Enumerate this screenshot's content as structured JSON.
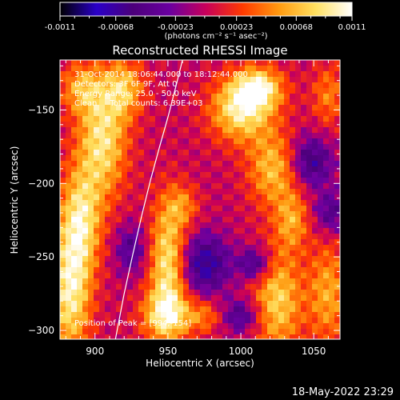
{
  "chart_data": {
    "type": "heatmap",
    "title": "Reconstructed RHESSI Image",
    "xlabel": "Heliocentric X (arcsec)",
    "ylabel": "Heliocentric Y (arcsec)",
    "xlim": [
      876,
      1068
    ],
    "ylim": [
      -306,
      -116
    ],
    "x_ticks": [
      900,
      950,
      1000,
      1050
    ],
    "y_ticks": [
      -300,
      -250,
      -200,
      -150
    ],
    "colorbar": {
      "range": [
        -0.0011,
        0.0011
      ],
      "tick_labels": [
        "-0.0011",
        "-0.00068",
        "-0.00023",
        "0.00023",
        "0.00068",
        "0.0011"
      ],
      "unit_label": "(photons cm⁻² s⁻¹ asec⁻²)",
      "colormap": [
        "#000000",
        "#2a00c8",
        "#4c007a",
        "#6a00a0",
        "#c8005a",
        "#ff3a00",
        "#ff9a10",
        "#ffe060",
        "#ffffff"
      ]
    },
    "annotations": [
      "31-Oct-2014 18:06:44.000 to 18:12:44.000",
      "Detectors: 3F 6F 9F, Att 0",
      "Energy Range: 25.0 - 50.0 keV",
      "Clean     Total counts: 6.39E+03"
    ],
    "peak_label": "Position of Peak = [994,-154]",
    "limb_curve": {
      "x": [
        914,
        920,
        926,
        932,
        938,
        944,
        950,
        956,
        960
      ],
      "y": [
        -306,
        -275,
        -248,
        -222,
        -198,
        -176,
        -155,
        -132,
        -116
      ]
    },
    "features": [
      {
        "x": 883,
        "y": -275,
        "sx": 10,
        "sy": 30,
        "v": 1.0
      },
      {
        "x": 890,
        "y": -225,
        "sx": 10,
        "sy": 25,
        "v": 0.9
      },
      {
        "x": 905,
        "y": -170,
        "sx": 12,
        "sy": 28,
        "v": 0.95
      },
      {
        "x": 920,
        "y": -135,
        "sx": 10,
        "sy": 14,
        "v": 0.7
      },
      {
        "x": 890,
        "y": -135,
        "sx": 10,
        "sy": 12,
        "v": 0.6
      },
      {
        "x": 950,
        "y": -255,
        "sx": 9,
        "sy": 30,
        "v": 1.0
      },
      {
        "x": 948,
        "y": -290,
        "sx": 12,
        "sy": 12,
        "v": 0.75
      },
      {
        "x": 1000,
        "y": -150,
        "sx": 15,
        "sy": 15,
        "v": 1.0
      },
      {
        "x": 1012,
        "y": -135,
        "sx": 12,
        "sy": 10,
        "v": 0.95
      },
      {
        "x": 1022,
        "y": -190,
        "sx": 12,
        "sy": 18,
        "v": 0.75
      },
      {
        "x": 1035,
        "y": -225,
        "sx": 8,
        "sy": 14,
        "v": 0.6
      },
      {
        "x": 1025,
        "y": -280,
        "sx": 12,
        "sy": 25,
        "v": 0.85
      },
      {
        "x": 1060,
        "y": -275,
        "sx": 10,
        "sy": 25,
        "v": 0.65
      },
      {
        "x": 1060,
        "y": -140,
        "sx": 8,
        "sy": 15,
        "v": 0.5
      },
      {
        "x": 975,
        "y": -290,
        "sx": 10,
        "sy": 8,
        "v": 0.5
      },
      {
        "x": 960,
        "y": -215,
        "sx": 8,
        "sy": 10,
        "v": 0.45
      },
      {
        "x": 975,
        "y": -255,
        "sx": 12,
        "sy": 14,
        "v": -0.8
      },
      {
        "x": 1010,
        "y": -255,
        "sx": 8,
        "sy": 8,
        "v": -0.7
      },
      {
        "x": 1048,
        "y": -185,
        "sx": 10,
        "sy": 12,
        "v": -0.7
      },
      {
        "x": 1000,
        "y": -290,
        "sx": 10,
        "sy": 8,
        "v": -0.6
      },
      {
        "x": 925,
        "y": -245,
        "sx": 8,
        "sy": 12,
        "v": -0.5
      },
      {
        "x": 1062,
        "y": -220,
        "sx": 8,
        "sy": 10,
        "v": -0.55
      }
    ]
  },
  "footer_timestamp": "18-May-2022 23:29"
}
